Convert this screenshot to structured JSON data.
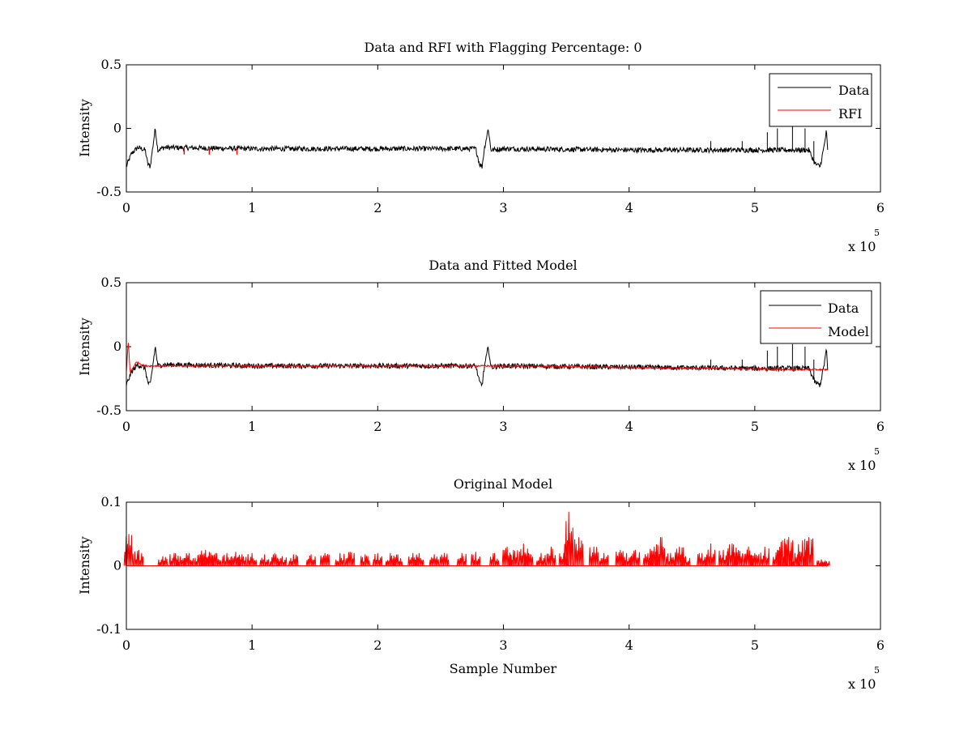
{
  "chart_data": [
    {
      "type": "line",
      "title": "Data and RFI with Flagging Percentage: 0",
      "xlabel": "",
      "ylabel": "Intensity",
      "xlim": [
        0,
        600000
      ],
      "ylim": [
        -0.5,
        0.5
      ],
      "x_ticks": [
        0,
        100000,
        200000,
        300000,
        400000,
        500000,
        600000
      ],
      "x_tick_labels": [
        "0",
        "1",
        "2",
        "3",
        "4",
        "5",
        "6"
      ],
      "y_ticks": [
        -0.5,
        0,
        0.5
      ],
      "y_tick_labels": [
        "-0.5",
        "0",
        "0.5"
      ],
      "x_exponent_label": "x 10",
      "x_exponent_power": "5",
      "legend": {
        "position": "top-right",
        "entries": [
          "Data",
          "RFI"
        ]
      },
      "grid": false,
      "series": [
        {
          "name": "Data",
          "color": "#000000",
          "points": [
            [
              0,
              -0.3
            ],
            [
              4000,
              -0.2
            ],
            [
              9000,
              -0.15
            ],
            [
              15000,
              -0.17
            ],
            [
              17000,
              -0.28
            ],
            [
              19000,
              -0.3
            ],
            [
              21000,
              -0.15
            ],
            [
              23000,
              -0.0
            ],
            [
              25000,
              -0.17
            ],
            [
              30000,
              -0.15
            ],
            [
              100000,
              -0.16
            ],
            [
              200000,
              -0.16
            ],
            [
              278000,
              -0.16
            ],
            [
              281000,
              -0.28
            ],
            [
              283000,
              -0.3
            ],
            [
              285000,
              -0.15
            ],
            [
              288000,
              -0.0
            ],
            [
              290000,
              -0.17
            ],
            [
              300000,
              -0.16
            ],
            [
              400000,
              -0.17
            ],
            [
              500000,
              -0.17
            ],
            [
              543000,
              -0.17
            ],
            [
              548000,
              -0.28
            ],
            [
              552000,
              -0.3
            ],
            [
              555000,
              -0.15
            ],
            [
              557000,
              -0.02
            ],
            [
              558000,
              -0.18
            ]
          ],
          "spikes": [
            [
              465000,
              -0.1
            ],
            [
              490000,
              -0.1
            ],
            [
              510000,
              -0.03
            ],
            [
              518000,
              0.0
            ],
            [
              530000,
              0.02
            ],
            [
              540000,
              0.0
            ],
            [
              547000,
              -0.1
            ]
          ],
          "noise_amplitude": 0.02
        },
        {
          "name": "RFI",
          "color": "#ff0000",
          "points": [
            [
              46000,
              -0.18
            ],
            [
              66000,
              -0.18
            ],
            [
              88000,
              -0.18
            ]
          ]
        }
      ]
    },
    {
      "type": "line",
      "title": "Data and Fitted Model",
      "xlabel": "",
      "ylabel": "Intensity",
      "xlim": [
        0,
        600000
      ],
      "ylim": [
        -0.5,
        0.5
      ],
      "x_ticks": [
        0,
        100000,
        200000,
        300000,
        400000,
        500000,
        600000
      ],
      "x_tick_labels": [
        "0",
        "1",
        "2",
        "3",
        "4",
        "5",
        "6"
      ],
      "y_ticks": [
        -0.5,
        0,
        0.5
      ],
      "y_tick_labels": [
        "-0.5",
        "0",
        "0.5"
      ],
      "x_exponent_label": "x 10",
      "x_exponent_power": "5",
      "legend": {
        "position": "top-right",
        "entries": [
          "Data",
          "Model"
        ]
      },
      "grid": false,
      "series": [
        {
          "name": "Data",
          "color": "#000000",
          "points": [
            [
              0,
              -0.3
            ],
            [
              4000,
              -0.2
            ],
            [
              9000,
              -0.14
            ],
            [
              15000,
              -0.17
            ],
            [
              17000,
              -0.28
            ],
            [
              19000,
              -0.3
            ],
            [
              21000,
              -0.15
            ],
            [
              23000,
              -0.0
            ],
            [
              25000,
              -0.15
            ],
            [
              30000,
              -0.14
            ],
            [
              100000,
              -0.15
            ],
            [
              200000,
              -0.15
            ],
            [
              278000,
              -0.15
            ],
            [
              281000,
              -0.28
            ],
            [
              283000,
              -0.3
            ],
            [
              285000,
              -0.15
            ],
            [
              288000,
              -0.0
            ],
            [
              290000,
              -0.16
            ],
            [
              300000,
              -0.15
            ],
            [
              400000,
              -0.16
            ],
            [
              500000,
              -0.17
            ],
            [
              543000,
              -0.17
            ],
            [
              548000,
              -0.28
            ],
            [
              552000,
              -0.3
            ],
            [
              555000,
              -0.15
            ],
            [
              557000,
              -0.02
            ],
            [
              558000,
              -0.18
            ]
          ],
          "spikes": [
            [
              465000,
              -0.1
            ],
            [
              490000,
              -0.1
            ],
            [
              510000,
              -0.03
            ],
            [
              518000,
              0.0
            ],
            [
              530000,
              0.02
            ],
            [
              540000,
              0.0
            ],
            [
              547000,
              -0.1
            ]
          ],
          "noise_amplitude": 0.02
        },
        {
          "name": "Model",
          "color": "#ff0000",
          "points": [
            [
              0,
              -0.2
            ],
            [
              1500,
              0.05
            ],
            [
              3000,
              -0.2
            ],
            [
              8000,
              -0.12
            ],
            [
              15000,
              -0.15
            ],
            [
              300000,
              -0.15
            ],
            [
              558000,
              -0.18
            ]
          ],
          "noise_amplitude": 0.006
        }
      ]
    },
    {
      "type": "line",
      "title": "Original Model",
      "xlabel": "Sample Number",
      "ylabel": "Intensity",
      "xlim": [
        0,
        600000
      ],
      "ylim": [
        -0.1,
        0.1
      ],
      "x_ticks": [
        0,
        100000,
        200000,
        300000,
        400000,
        500000,
        600000
      ],
      "x_tick_labels": [
        "0",
        "1",
        "2",
        "3",
        "4",
        "5",
        "6"
      ],
      "y_ticks": [
        -0.1,
        0,
        0.1
      ],
      "y_tick_labels": [
        "-0.1",
        "0",
        "0.1"
      ],
      "x_exponent_label": "x 10",
      "x_exponent_power": "5",
      "grid": false,
      "series": [
        {
          "color": "#ff0000",
          "baseline": 0,
          "x_end": 558000,
          "spikes": [
            [
              2000,
              0.05
            ],
            [
              10000,
              0.025
            ],
            [
              29000,
              0.015
            ],
            [
              38000,
              0.02
            ],
            [
              43000,
              0.015
            ],
            [
              50000,
              0.02
            ],
            [
              58000,
              0.018
            ],
            [
              63000,
              0.025
            ],
            [
              66000,
              0.022
            ],
            [
              72000,
              0.02
            ],
            [
              80000,
              0.02
            ],
            [
              87000,
              0.022
            ],
            [
              92000,
              0.018
            ],
            [
              100000,
              0.02
            ],
            [
              110000,
              0.018
            ],
            [
              118000,
              0.02
            ],
            [
              124000,
              0.015
            ],
            [
              133000,
              0.018
            ],
            [
              147000,
              0.018
            ],
            [
              158000,
              0.02
            ],
            [
              170000,
              0.02
            ],
            [
              178000,
              0.022
            ],
            [
              190000,
              0.018
            ],
            [
              200000,
              0.02
            ],
            [
              210000,
              0.02
            ],
            [
              216000,
              0.018
            ],
            [
              228000,
              0.02
            ],
            [
              233000,
              0.02
            ],
            [
              245000,
              0.018
            ],
            [
              253000,
              0.02
            ],
            [
              267000,
              0.02
            ],
            [
              278000,
              0.022
            ],
            [
              293000,
              0.02
            ],
            [
              303000,
              0.03
            ],
            [
              308000,
              0.025
            ],
            [
              316000,
              0.035
            ],
            [
              320000,
              0.02
            ],
            [
              330000,
              0.02
            ],
            [
              338000,
              0.03
            ],
            [
              348000,
              0.02
            ],
            [
              352000,
              0.085
            ],
            [
              360000,
              0.045
            ],
            [
              372000,
              0.03
            ],
            [
              380000,
              0.02
            ],
            [
              393000,
              0.025
            ],
            [
              398000,
              0.02
            ],
            [
              405000,
              0.025
            ],
            [
              415000,
              0.02
            ],
            [
              420000,
              0.03
            ],
            [
              425000,
              0.045
            ],
            [
              433000,
              0.02
            ],
            [
              440000,
              0.03
            ],
            [
              445000,
              0.015
            ],
            [
              458000,
              0.02
            ],
            [
              465000,
              0.035
            ],
            [
              475000,
              0.025
            ],
            [
              482000,
              0.035
            ],
            [
              487000,
              0.025
            ],
            [
              495000,
              0.03
            ],
            [
              500000,
              0.02
            ],
            [
              508000,
              0.03
            ],
            [
              518000,
              0.025
            ],
            [
              522000,
              0.04
            ],
            [
              527000,
              0.045
            ],
            [
              532000,
              0.02
            ],
            [
              538000,
              0.04
            ],
            [
              543000,
              0.045
            ],
            [
              553000,
              0.01
            ],
            [
              556000,
              0.008
            ]
          ]
        }
      ]
    }
  ]
}
